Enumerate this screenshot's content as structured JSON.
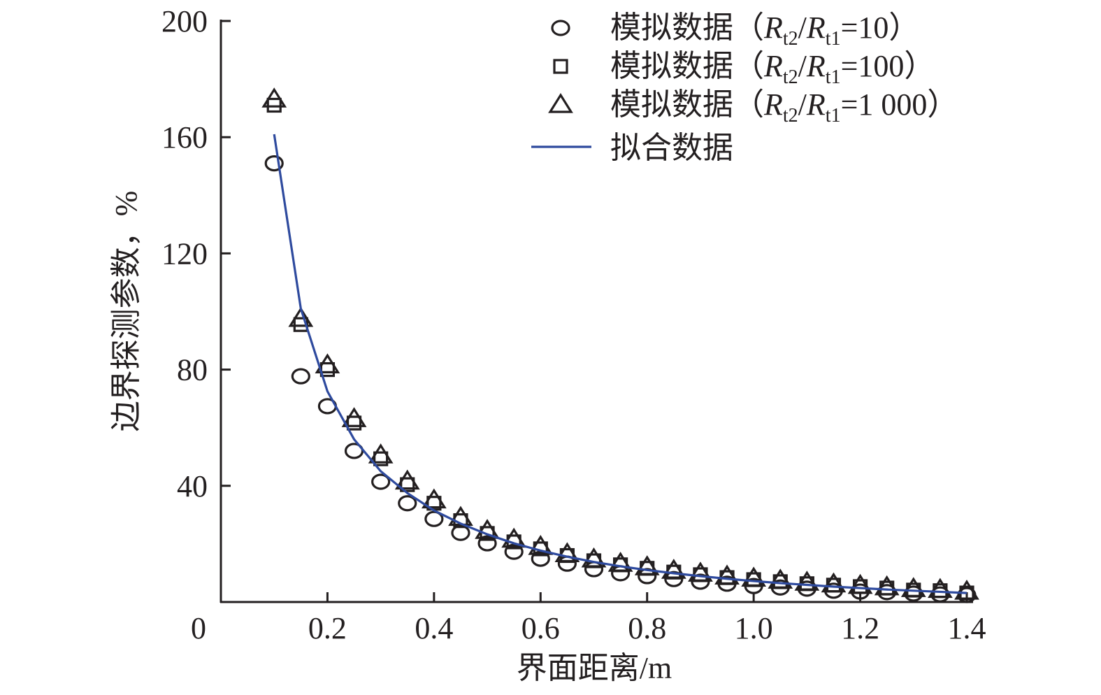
{
  "chart_data": {
    "type": "scatter",
    "title": "",
    "xlabel": "界面距离/m",
    "ylabel": "边界探测参数，%",
    "xlim": [
      0,
      1.4
    ],
    "ylim": [
      0,
      200
    ],
    "xticks": [
      "0",
      "0.2",
      "0.4",
      "0.6",
      "0.8",
      "1.0",
      "1.2",
      "1.4"
    ],
    "xtick_values": [
      0,
      0.2,
      0.4,
      0.6,
      0.8,
      1.0,
      1.2,
      1.4
    ],
    "yticks": [
      "40",
      "80",
      "120",
      "160",
      "200"
    ],
    "ytick_values": [
      40,
      80,
      120,
      160,
      200
    ],
    "grid": false,
    "legend_position": "top-right",
    "x": [
      0.1,
      0.15,
      0.2,
      0.25,
      0.3,
      0.35,
      0.4,
      0.45,
      0.5,
      0.55,
      0.6,
      0.65,
      0.7,
      0.75,
      0.8,
      0.85,
      0.9,
      0.95,
      1.0,
      1.05,
      1.1,
      1.15,
      1.2,
      1.25,
      1.3,
      1.35,
      1.4
    ],
    "series": [
      {
        "name": "模拟数据（Rt2/Rt1=10）",
        "legend": {
          "prefix": "模拟数据（",
          "r1": "R",
          "s1": "t2",
          "slash": "/",
          "r2": "R",
          "s2": "t1",
          "suffix": "=10）"
        },
        "marker": "circle",
        "values": [
          151,
          77.7,
          67.4,
          52,
          41.4,
          34,
          28.6,
          23.8,
          20.2,
          17.3,
          14.9,
          13.2,
          11.3,
          9.9,
          8.9,
          7.9,
          7.0,
          6.3,
          5.5,
          5.0,
          4.6,
          3.9,
          3.6,
          3.4,
          2.9,
          2.6,
          2.4
        ]
      },
      {
        "name": "模拟数据（Rt2/Rt1=100）",
        "legend": {
          "prefix": "模拟数据（",
          "r1": "R",
          "s1": "t2",
          "slash": "/",
          "r2": "R",
          "s2": "t1",
          "suffix": "=100）"
        },
        "marker": "square",
        "values": [
          171,
          95.5,
          80,
          61.6,
          49.3,
          40.4,
          34,
          28,
          23.6,
          20.7,
          18.3,
          16,
          14.2,
          12.8,
          11.6,
          10.3,
          9.4,
          8.4,
          7.7,
          7.0,
          6.3,
          5.8,
          5.3,
          4.8,
          4.1,
          3.9,
          3.1
        ]
      },
      {
        "name": "模拟数据（Rt2/Rt1=1 000）",
        "legend": {
          "prefix": "模拟数据（",
          "r1": "R",
          "s1": "t2",
          "slash": "/",
          "r2": "R",
          "s2": "t1",
          "suffix": "=1 000）"
        },
        "marker": "triangle",
        "values": [
          173,
          97.5,
          81.5,
          63,
          50.5,
          41.5,
          35,
          29,
          24.5,
          21.5,
          19,
          16.5,
          14.7,
          13.2,
          12,
          10.8,
          9.8,
          8.8,
          8.1,
          7.4,
          6.7,
          6.1,
          5.6,
          5.1,
          4.5,
          4.2,
          3.6
        ]
      },
      {
        "name": "拟合数据",
        "legend": {
          "prefix": "拟合数据"
        },
        "marker": "line",
        "color": "#2e4a9e",
        "values": [
          161,
          101,
          72.5,
          56,
          45,
          37.5,
          31.5,
          27,
          23.3,
          20.2,
          17.7,
          15.6,
          13.8,
          12.3,
          11,
          9.9,
          8.9,
          8,
          7.2,
          6.5,
          5.9,
          5.3,
          4.8,
          4.3,
          3.9,
          3.5,
          3.1
        ]
      }
    ]
  }
}
